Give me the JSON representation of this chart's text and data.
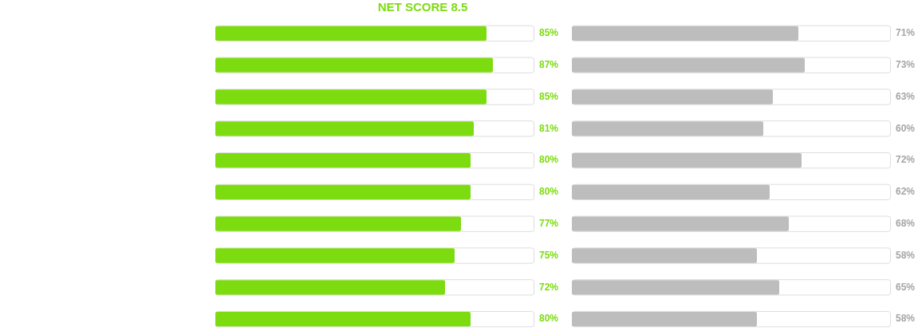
{
  "chart_data": [
    {
      "type": "bar",
      "orientation": "horizontal",
      "title": "NET SCORE 8.5",
      "categories": [
        null,
        null,
        null,
        null,
        null,
        null,
        null,
        null,
        null,
        null
      ],
      "values": [
        85,
        87,
        85,
        81,
        80,
        80,
        77,
        75,
        72,
        80
      ],
      "color": "#7ddc10",
      "value_labels": [
        "85%",
        "87%",
        "85%",
        "81%",
        "80%",
        "80%",
        "77%",
        "75%",
        "72%",
        "80%"
      ],
      "xlim": [
        0,
        100
      ],
      "tick_labels": false,
      "legend": false
    },
    {
      "type": "bar",
      "orientation": "horizontal",
      "categories": [
        null,
        null,
        null,
        null,
        null,
        null,
        null,
        null,
        null,
        null
      ],
      "values": [
        71,
        73,
        63,
        60,
        72,
        62,
        68,
        58,
        65,
        58
      ],
      "color": "#bdbdbd",
      "value_labels": [
        "71%",
        "73%",
        "63%",
        "60%",
        "72%",
        "62%",
        "68%",
        "58%",
        "65%",
        "58%"
      ],
      "xlim": [
        0,
        100
      ],
      "tick_labels": false,
      "legend": false
    }
  ]
}
